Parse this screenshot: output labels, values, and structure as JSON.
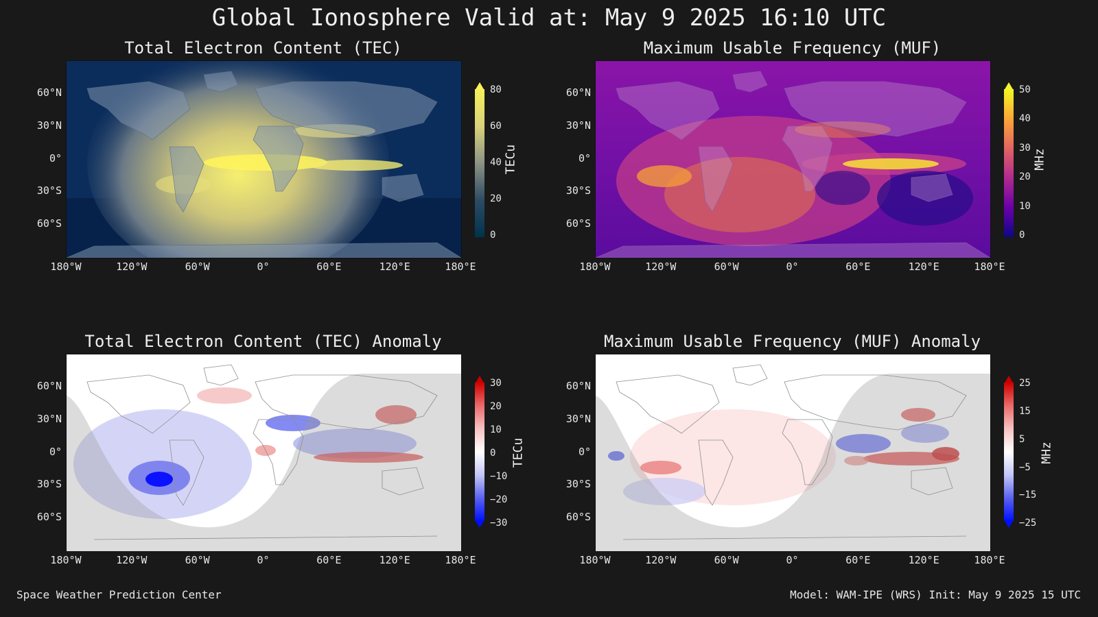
{
  "title": "Global Ionosphere Valid at: May 9 2025 16:10 UTC",
  "lat_ticks": [
    "60°N",
    "30°N",
    "0°",
    "30°S",
    "60°S"
  ],
  "lon_ticks": [
    "180°W",
    "120°W",
    "60°W",
    "0°",
    "60°E",
    "120°E",
    "180°E"
  ],
  "panels": {
    "tec": {
      "title": "Total Electron Content (TEC)",
      "units": "TECu",
      "colorbar_ticks": [
        "80",
        "60",
        "40",
        "20",
        "0"
      ],
      "colors": [
        "#0b2d5c",
        "#3d5f82",
        "#a3a88a",
        "#f2ee73",
        "#fff35a"
      ]
    },
    "muf": {
      "title": "Maximum Usable Frequency (MUF)",
      "units": "MHz",
      "colorbar_ticks": [
        "50",
        "40",
        "30",
        "20",
        "10",
        "0"
      ],
      "colors": [
        "#1a0a7a",
        "#7b12a8",
        "#c23b8a",
        "#f0803c",
        "#f8e23a"
      ]
    },
    "tec_anom": {
      "title": "Total Electron Content (TEC) Anomaly",
      "units": "TECu",
      "colorbar_ticks": [
        "30",
        "20",
        "10",
        "0",
        "−10",
        "−20",
        "−30"
      ],
      "colors": [
        "#0010ff",
        "#8f96f0",
        "#ffffff",
        "#f2a0a0",
        "#d00000"
      ]
    },
    "muf_anom": {
      "title": "Maximum Usable Frequency (MUF) Anomaly",
      "units": "MHz",
      "colorbar_ticks": [
        "25",
        "15",
        "5",
        "−5",
        "−15",
        "−25"
      ],
      "colors": [
        "#0010ff",
        "#8f96f0",
        "#ffffff",
        "#f2a0a0",
        "#d00000"
      ]
    }
  },
  "footer": {
    "left": "Space Weather Prediction Center",
    "right": "Model: WAM-IPE (WRS) Init: May 9 2025 15 UTC"
  }
}
